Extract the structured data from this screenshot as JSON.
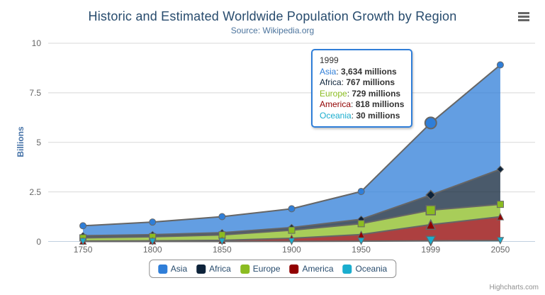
{
  "chart_data": {
    "type": "area",
    "stacking": "normal",
    "title": "Historic and Estimated Worldwide Population Growth by Region",
    "subtitle": "Source: Wikipedia.org",
    "categories": [
      "1750",
      "1800",
      "1850",
      "1900",
      "1950",
      "1999",
      "2050"
    ],
    "xlabel": "",
    "ylabel": "Billions",
    "ylim": [
      0,
      10
    ],
    "yticks": [
      0,
      2.5,
      5,
      7.5,
      10
    ],
    "values_unit": "millions",
    "grid": "horizontal",
    "legend_position": "bottom-center",
    "hovered_category": "1999",
    "series": [
      {
        "name": "Asia",
        "color": "#2f7ed8",
        "marker": "circle",
        "values": [
          502,
          635,
          809,
          947,
          1402,
          3634,
          5268
        ]
      },
      {
        "name": "Africa",
        "color": "#0d233a",
        "marker": "diamond",
        "values": [
          106,
          107,
          111,
          133,
          221,
          767,
          1766
        ]
      },
      {
        "name": "Europe",
        "color": "#8bbc21",
        "marker": "square",
        "values": [
          163,
          203,
          276,
          408,
          547,
          729,
          628
        ]
      },
      {
        "name": "America",
        "color": "#910000",
        "marker": "triangle",
        "values": [
          18,
          31,
          54,
          156,
          339,
          818,
          1201
        ]
      },
      {
        "name": "Oceania",
        "color": "#1aadce",
        "marker": "triangle-down",
        "values": [
          2,
          2,
          2,
          6,
          13,
          30,
          46
        ]
      }
    ]
  },
  "tooltip": {
    "header": "1999",
    "border_color": "#2f7ed8",
    "rows": [
      {
        "name": "Asia",
        "color": "#2f7ed8",
        "value": "3,634 millions"
      },
      {
        "name": "Africa",
        "color": "#0d233a",
        "value": "767 millions"
      },
      {
        "name": "Europe",
        "color": "#8bbc21",
        "value": "729 millions"
      },
      {
        "name": "America",
        "color": "#910000",
        "value": "818 millions"
      },
      {
        "name": "Oceania",
        "color": "#1aadce",
        "value": "30 millions"
      }
    ]
  },
  "legend": {
    "items": [
      {
        "label": "Asia",
        "color": "#2f7ed8"
      },
      {
        "label": "Africa",
        "color": "#0d233a"
      },
      {
        "label": "Europe",
        "color": "#8bbc21"
      },
      {
        "label": "America",
        "color": "#910000"
      },
      {
        "label": "Oceania",
        "color": "#1aadce"
      }
    ]
  },
  "credits": {
    "label": "Highcharts.com"
  },
  "icons": {
    "export_menu": "hamburger-icon"
  },
  "colors": {
    "title": "#274b6d",
    "subtitle": "#4d759e",
    "axis_labels": "#666666",
    "y_axis_title": "#4572a7",
    "grid": "#d8d8d8",
    "axis_line": "#c0d0e0",
    "series_line": "#666666",
    "legend_border": "#909090",
    "legend_text": "#274b6d",
    "credits": "#909090"
  }
}
